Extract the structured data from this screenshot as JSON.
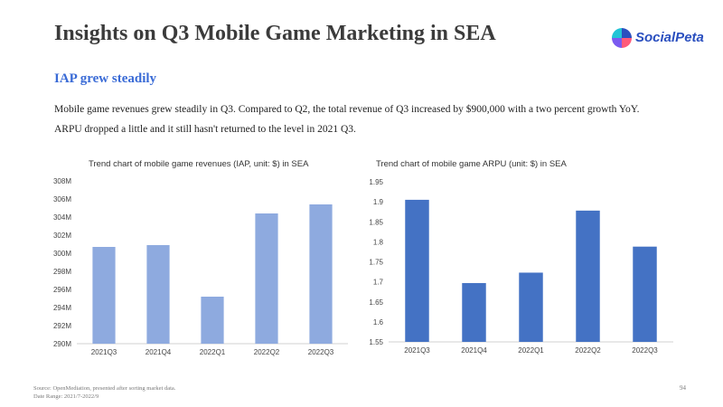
{
  "page": {
    "title": "Insights on Q3 Mobile Game Marketing in SEA",
    "logo_text": "SocialPeta",
    "subtitle": "IAP grew steadily",
    "paragraph_line1": "Mobile game revenues grew steadily in Q3. Compared to Q2, the total revenue of Q3 increased by $900,000 with a two percent growth YoY.",
    "paragraph_line2": "ARPU dropped a little and it still hasn't returned to the level in 2021 Q3.",
    "source": "Source: OpenMediation, presented after sorting market data.",
    "date_range": "Date Range: 2021/7-2022/9",
    "page_number": "94"
  },
  "colors": {
    "title": "#3b3b3b",
    "subtitle": "#3a6bd6",
    "revenue_bar": "#8eaadf",
    "arpu_bar": "#4472c4"
  },
  "chart_data": [
    {
      "type": "bar",
      "title": "Trend chart of mobile game revenues (IAP, unit: $) in SEA",
      "categories": [
        "2021Q3",
        "2021Q4",
        "2022Q1",
        "2022Q2",
        "2022Q3"
      ],
      "values": [
        300.7,
        300.9,
        295.2,
        304.4,
        305.4
      ],
      "ylim": [
        290,
        308
      ],
      "yticks": [
        290,
        292,
        294,
        296,
        298,
        300,
        302,
        304,
        306,
        308
      ],
      "ytick_labels": [
        "290M",
        "292M",
        "294M",
        "296M",
        "298M",
        "300M",
        "302M",
        "304M",
        "306M",
        "308M"
      ],
      "xlabel": "",
      "ylabel": "",
      "grid": false,
      "color": "#8eaadf"
    },
    {
      "type": "bar",
      "title": "Trend chart of mobile game ARPU (unit: $) in SEA",
      "categories": [
        "2021Q3",
        "2021Q4",
        "2022Q1",
        "2022Q2",
        "2022Q3"
      ],
      "values": [
        1.905,
        1.697,
        1.723,
        1.878,
        1.788
      ],
      "ylim": [
        1.55,
        1.95
      ],
      "yticks": [
        1.55,
        1.6,
        1.65,
        1.7,
        1.75,
        1.8,
        1.85,
        1.9,
        1.95
      ],
      "ytick_labels": [
        "1.55",
        "1.6",
        "1.65",
        "1.7",
        "1.75",
        "1.8",
        "1.85",
        "1.9",
        "1.95"
      ],
      "xlabel": "",
      "ylabel": "",
      "grid": false,
      "color": "#4472c4"
    }
  ]
}
